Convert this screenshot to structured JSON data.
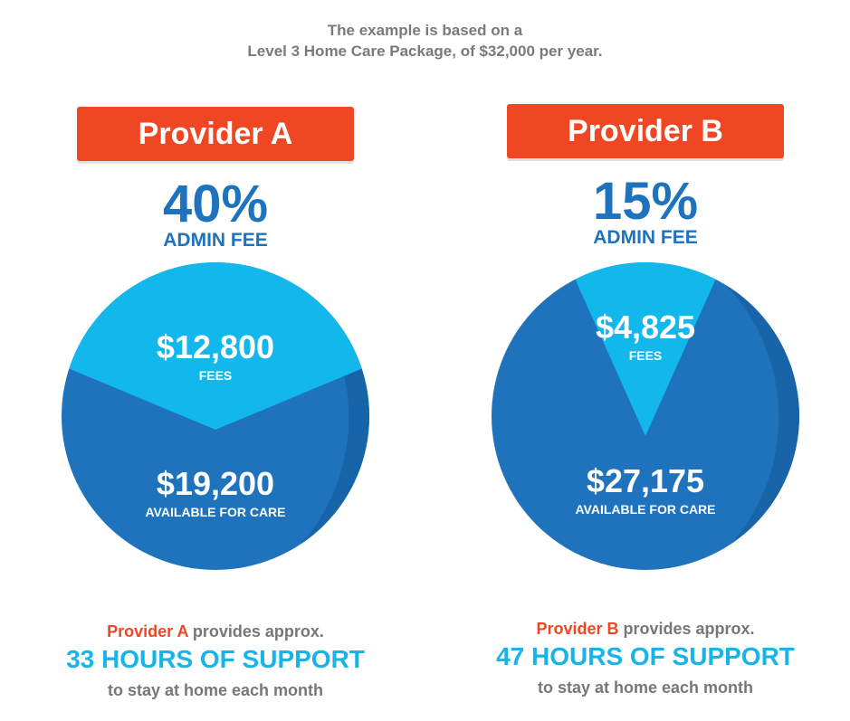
{
  "intro": {
    "line1": "The example is based on a",
    "line2": "Level 3 Home Care Package, of $32,000 per year."
  },
  "colors": {
    "banner": "#ef4723",
    "heading_blue": "#1e73be",
    "fee_slice": "#12b8ec",
    "fee_slice_shade": "#0aa5d6",
    "care_slice": "#1f73bd",
    "care_slice_shade": "#1862a5",
    "support_cyan": "#18b4e8",
    "provider_red": "#ef4723",
    "grey_text": "#777777"
  },
  "providers": [
    {
      "banner": "Provider A",
      "admin_pct": "40%",
      "admin_label": "ADMIN FEE",
      "provider_name": "Provider A",
      "provides_text": " provides approx.",
      "hours_text": "33 HOURS OF SUPPORT",
      "stay_text": "to stay at home each month"
    },
    {
      "banner": "Provider B",
      "admin_pct": "15%",
      "admin_label": "ADMIN FEE",
      "provider_name": "Provider B",
      "provides_text": " provides approx.",
      "hours_text": "47 HOURS OF SUPPORT",
      "stay_text": "to stay at home each month"
    }
  ],
  "chart_data": [
    {
      "type": "pie",
      "title": "Provider A",
      "categories": [
        "FEES",
        "AVAILABLE FOR CARE"
      ],
      "values": [
        12800,
        19200
      ],
      "value_labels": [
        "$12,800",
        "$19,200"
      ],
      "total": 32000
    },
    {
      "type": "pie",
      "title": "Provider B",
      "categories": [
        "FEES",
        "AVAILABLE FOR CARE"
      ],
      "values": [
        4825,
        27175
      ],
      "value_labels": [
        "$4,825",
        "$27,175"
      ],
      "total": 32000
    }
  ]
}
